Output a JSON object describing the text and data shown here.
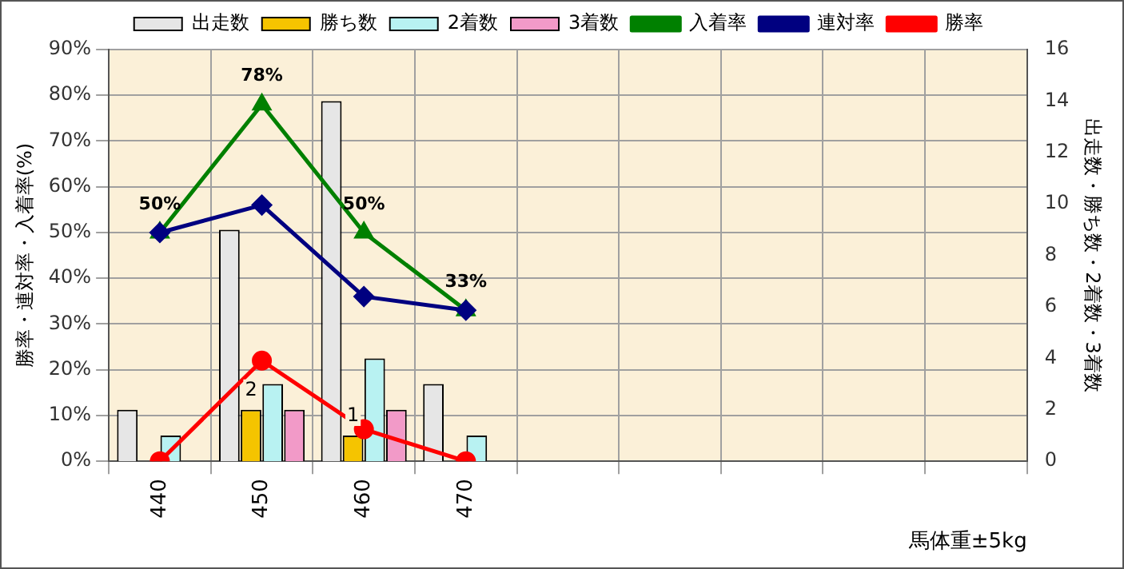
{
  "chart_data": {
    "type": "bar",
    "xlabel": "馬体重±5kg",
    "ylabel": "勝率・連対率・入着率(%)",
    "y2label": "出走数・勝ち数・2着数・3着数",
    "categories": [
      "440",
      "450",
      "460",
      "470",
      null,
      null,
      null,
      null,
      null
    ],
    "series": [
      {
        "name": "出走数",
        "axis": "y2",
        "color": "#e6e6e6",
        "values": [
          2,
          9,
          14,
          3,
          null,
          null,
          null,
          null,
          null
        ]
      },
      {
        "name": "勝ち数",
        "axis": "y2",
        "color": "#f5c400",
        "values": [
          0,
          2,
          1,
          0,
          null,
          null,
          null,
          null,
          null
        ],
        "value_labels": [
          null,
          "2",
          "1",
          null,
          null,
          null,
          null,
          null,
          null
        ]
      },
      {
        "name": "2着数",
        "axis": "y2",
        "color": "#b8f2f2",
        "values": [
          1,
          3,
          4,
          1,
          null,
          null,
          null,
          null,
          null
        ]
      },
      {
        "name": "3着数",
        "axis": "y2",
        "color": "#f29ac8",
        "values": [
          0,
          2,
          2,
          0,
          null,
          null,
          null,
          null,
          null
        ]
      },
      {
        "name": "入着率",
        "type": "line",
        "axis": "y",
        "color": "#008000",
        "marker": "triangle",
        "values": [
          50,
          78,
          50,
          33,
          null,
          null,
          null,
          null,
          null
        ],
        "value_labels": [
          "50%",
          "78%",
          "50%",
          "33%",
          null,
          null,
          null,
          null,
          null
        ]
      },
      {
        "name": "連対率",
        "type": "line",
        "axis": "y",
        "color": "#000080",
        "marker": "diamond",
        "values": [
          50,
          56,
          36,
          33,
          null,
          null,
          null,
          null,
          null
        ]
      },
      {
        "name": "勝率",
        "type": "line",
        "axis": "y",
        "color": "#ff0000",
        "marker": "circle",
        "values": [
          0,
          22,
          7,
          0,
          null,
          null,
          null,
          null,
          null
        ]
      }
    ],
    "ylim": [
      0,
      90
    ],
    "yticks": [
      {
        "value": 0,
        "label": "0%"
      },
      {
        "value": 10,
        "label": "10%"
      },
      {
        "value": 20,
        "label": "20%"
      },
      {
        "value": 30,
        "label": "30%"
      },
      {
        "value": 40,
        "label": "40%"
      },
      {
        "value": 50,
        "label": "50%"
      },
      {
        "value": 60,
        "label": "60%"
      },
      {
        "value": 70,
        "label": "70%"
      },
      {
        "value": 80,
        "label": "80%"
      },
      {
        "value": 90,
        "label": "90%"
      }
    ],
    "y2lim": [
      0,
      16
    ],
    "y2ticks": [
      0,
      2,
      4,
      6,
      8,
      10,
      12,
      14,
      16
    ],
    "grid": true,
    "legend": "top"
  }
}
